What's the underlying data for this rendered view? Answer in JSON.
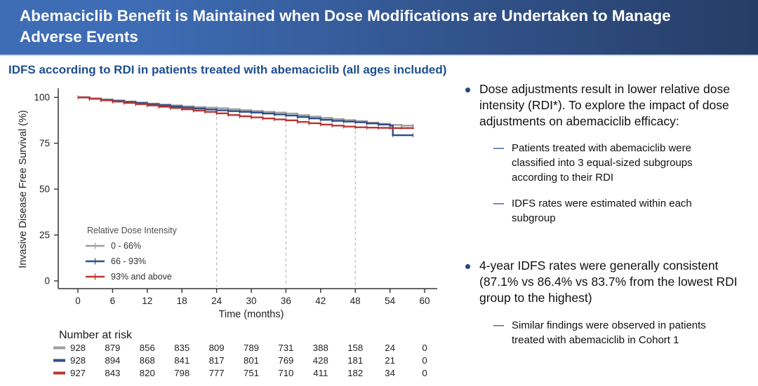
{
  "header": {
    "title": "Abemaciclib Benefit is Maintained when Dose Modifications are Undertaken to Manage Adverse Events"
  },
  "subtitle": "IDFS according to RDI in patients treated with abemaciclib (all ages included)",
  "chart_data": {
    "type": "line",
    "subtype": "kaplan-meier-step",
    "title": "",
    "xlabel": "Time (months)",
    "ylabel": "Invasive Disease Free Survival (%)",
    "xlim": [
      0,
      60
    ],
    "ylim": [
      0,
      100
    ],
    "xticks": [
      0,
      6,
      12,
      18,
      24,
      30,
      36,
      42,
      48,
      54,
      60
    ],
    "yticks": [
      0,
      25,
      50,
      75,
      100
    ],
    "grid": false,
    "reference_lines_x": [
      24,
      36,
      48
    ],
    "legend": {
      "title": "Relative Dose Intensity",
      "position": "inside lower-left"
    },
    "series": [
      {
        "name": "0 - 66%",
        "color": "#9e9e9e",
        "points": [
          [
            0,
            100
          ],
          [
            2,
            99.4
          ],
          [
            4,
            98.8
          ],
          [
            6,
            98.3
          ],
          [
            8,
            97.7
          ],
          [
            10,
            97.2
          ],
          [
            12,
            96.6
          ],
          [
            14,
            96.1
          ],
          [
            16,
            95.6
          ],
          [
            18,
            95.1
          ],
          [
            20,
            94.7
          ],
          [
            22,
            94.4
          ],
          [
            24,
            94.1
          ],
          [
            26,
            93.5
          ],
          [
            28,
            93.0
          ],
          [
            30,
            92.6
          ],
          [
            32,
            92.1
          ],
          [
            34,
            91.7
          ],
          [
            36,
            91.2
          ],
          [
            38,
            90.3
          ],
          [
            40,
            89.5
          ],
          [
            42,
            88.8
          ],
          [
            44,
            88.2
          ],
          [
            46,
            87.6
          ],
          [
            48,
            87.1
          ],
          [
            50,
            86.3
          ],
          [
            52,
            85.6
          ],
          [
            54,
            85.0
          ],
          [
            56,
            84.6
          ],
          [
            58,
            84.5
          ]
        ]
      },
      {
        "name": "66 - 93%",
        "color": "#2e4f88",
        "points": [
          [
            0,
            100
          ],
          [
            2,
            99.3
          ],
          [
            4,
            98.7
          ],
          [
            6,
            98.1
          ],
          [
            8,
            97.5
          ],
          [
            10,
            96.9
          ],
          [
            12,
            96.3
          ],
          [
            14,
            95.7
          ],
          [
            16,
            95.1
          ],
          [
            18,
            94.5
          ],
          [
            20,
            93.9
          ],
          [
            22,
            93.4
          ],
          [
            24,
            92.9
          ],
          [
            26,
            92.5
          ],
          [
            28,
            92.1
          ],
          [
            30,
            91.7
          ],
          [
            32,
            91.2
          ],
          [
            34,
            90.7
          ],
          [
            36,
            90.1
          ],
          [
            38,
            89.3
          ],
          [
            40,
            88.5
          ],
          [
            42,
            87.8
          ],
          [
            44,
            87.2
          ],
          [
            46,
            86.8
          ],
          [
            48,
            86.4
          ],
          [
            50,
            85.8
          ],
          [
            52,
            85.2
          ],
          [
            54,
            84.6
          ],
          [
            54.5,
            79.4
          ],
          [
            58,
            79.4
          ]
        ]
      },
      {
        "name": "93% and above",
        "color": "#b93531",
        "points": [
          [
            0,
            100
          ],
          [
            2,
            99.2
          ],
          [
            4,
            98.4
          ],
          [
            6,
            97.7
          ],
          [
            8,
            97.0
          ],
          [
            10,
            96.3
          ],
          [
            12,
            95.6
          ],
          [
            14,
            94.9
          ],
          [
            16,
            94.2
          ],
          [
            18,
            93.5
          ],
          [
            20,
            92.8
          ],
          [
            22,
            92.1
          ],
          [
            24,
            91.3
          ],
          [
            26,
            90.4
          ],
          [
            28,
            89.7
          ],
          [
            30,
            89.1
          ],
          [
            32,
            88.5
          ],
          [
            34,
            88.0
          ],
          [
            36,
            87.5
          ],
          [
            38,
            86.6
          ],
          [
            40,
            85.9
          ],
          [
            42,
            85.2
          ],
          [
            44,
            84.6
          ],
          [
            46,
            84.1
          ],
          [
            48,
            83.7
          ],
          [
            50,
            83.5
          ],
          [
            52,
            83.4
          ],
          [
            54,
            83.3
          ],
          [
            56,
            83.3
          ],
          [
            58,
            83.5
          ]
        ]
      }
    ],
    "annotations": {
      "four_year_idfs_rates": {
        "0 - 66%": 87.1,
        "66 - 93%": 86.4,
        "93% and above": 83.7
      }
    },
    "number_at_risk": {
      "label": "Number at risk",
      "times": [
        0,
        6,
        12,
        18,
        24,
        30,
        36,
        42,
        48,
        54,
        60
      ],
      "rows": [
        {
          "series": "0 - 66%",
          "color": "#9e9e9e",
          "values": [
            928,
            879,
            856,
            835,
            809,
            789,
            731,
            388,
            158,
            24,
            0
          ]
        },
        {
          "series": "66 - 93%",
          "color": "#2e4f88",
          "values": [
            928,
            894,
            868,
            841,
            817,
            801,
            769,
            428,
            181,
            21,
            0
          ]
        },
        {
          "series": "93% and above",
          "color": "#b93531",
          "values": [
            927,
            843,
            820,
            798,
            777,
            751,
            710,
            411,
            182,
            34,
            0
          ]
        }
      ]
    }
  },
  "right_panel": {
    "sub_marker": "—",
    "bullets": [
      {
        "text": "Dose adjustments result in lower relative dose intensity (RDI*). To explore the impact of dose adjustments on abemaciclib efficacy:",
        "sub": [
          "Patients treated with abemaciclib were classified into 3 equal-sized subgroups according to their RDI",
          "IDFS rates were estimated within each subgroup"
        ]
      },
      {
        "text": "4-year IDFS rates were generally consistent (87.1% vs 86.4% vs 83.7% from the lowest RDI group to the highest)",
        "sub": [
          "Similar findings were observed in patients treated with abemaciclib in Cohort 1"
        ]
      }
    ]
  },
  "colors": {
    "header_gradient_left": "#3e6cb5",
    "header_gradient_right": "#263d66",
    "header_text": "#ffffff",
    "subtitle": "#1e4e91",
    "axis": "#333333",
    "tick_text": "#222222",
    "ref_line": "#bdbdbd",
    "bullet_dot": "#27477e",
    "sub_dash": "#44699f",
    "legend_title": "#4d4d4d"
  }
}
